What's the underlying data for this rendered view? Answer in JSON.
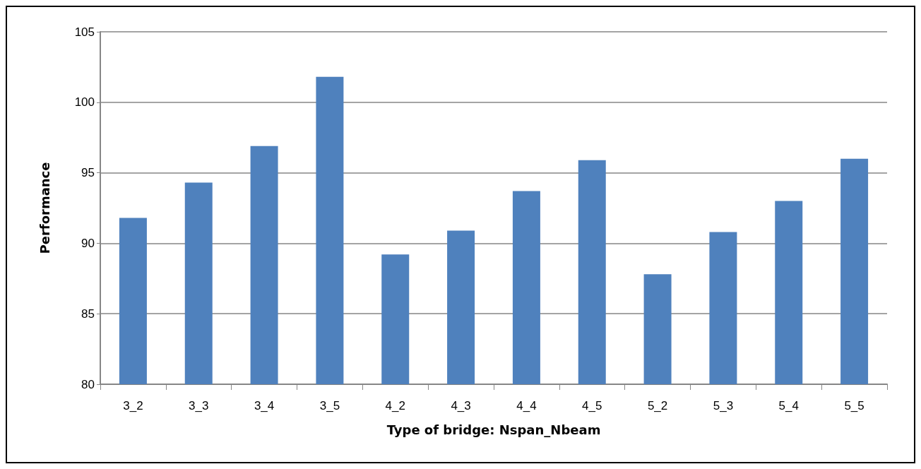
{
  "chart_data": {
    "type": "bar",
    "xlabel": "Type of bridge: Nspan_Nbeam",
    "ylabel": "Performance",
    "categories": [
      "3_2",
      "3_3",
      "3_4",
      "3_5",
      "4_2",
      "4_3",
      "4_4",
      "4_5",
      "5_2",
      "5_3",
      "5_4",
      "5_5"
    ],
    "values": [
      91.8,
      94.3,
      96.9,
      101.8,
      89.2,
      90.9,
      93.7,
      95.9,
      87.8,
      90.8,
      93.0,
      96.0
    ],
    "color": "#4f81bd",
    "ylim": [
      80,
      105
    ],
    "yticks": [
      80,
      85,
      90,
      95,
      100,
      105
    ],
    "grid": "y"
  }
}
